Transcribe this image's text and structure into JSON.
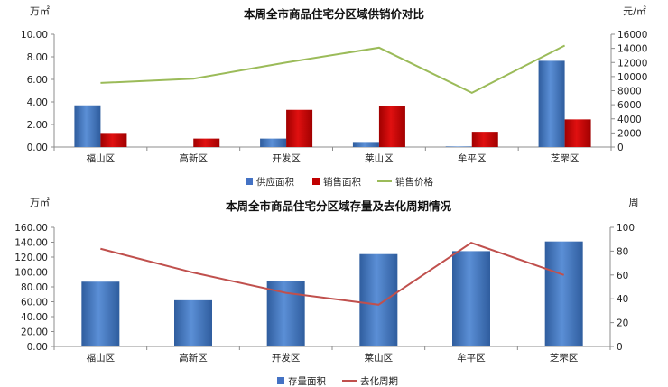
{
  "chart_data": [
    {
      "type": "bar",
      "title": "本周全市商品住宅分区域供销价对比",
      "categories": [
        "福山区",
        "高新区",
        "开发区",
        "莱山区",
        "牟平区",
        "芝罘区"
      ],
      "left_unit": "万㎡",
      "right_unit": "元/㎡",
      "ylim": [
        0,
        10
      ],
      "y_ticks": [
        "0.00",
        "2.00",
        "4.00",
        "6.00",
        "8.00",
        "10.00"
      ],
      "y2lim": [
        0,
        16000
      ],
      "y2_ticks": [
        "0",
        "2000",
        "4000",
        "6000",
        "8000",
        "10000",
        "12000",
        "14000",
        "16000"
      ],
      "series": [
        {
          "name": "供应面积",
          "kind": "bar",
          "axis": "left",
          "color": "#4472c4",
          "values": [
            3.7,
            0,
            0.75,
            0.45,
            0.05,
            7.65
          ]
        },
        {
          "name": "销售面积",
          "kind": "bar",
          "axis": "left",
          "color": "#c00000",
          "values": [
            1.25,
            0.75,
            3.3,
            3.65,
            1.35,
            2.45
          ]
        },
        {
          "name": "销售价格",
          "kind": "line",
          "axis": "right",
          "color": "#9bbb59",
          "values": [
            9100,
            9700,
            12000,
            14100,
            7700,
            14400
          ]
        }
      ],
      "legend_position": "bottom"
    },
    {
      "type": "bar",
      "title": "本周全市商品住宅分区域存量及去化周期情况",
      "categories": [
        "福山区",
        "高新区",
        "开发区",
        "莱山区",
        "牟平区",
        "芝罘区"
      ],
      "left_unit": "万㎡",
      "right_unit": "周",
      "ylim": [
        0,
        160
      ],
      "y_ticks": [
        "0.00",
        "20.00",
        "40.00",
        "60.00",
        "80.00",
        "100.00",
        "120.00",
        "140.00",
        "160.00"
      ],
      "y2lim": [
        0,
        100
      ],
      "y2_ticks": [
        "0",
        "20",
        "40",
        "60",
        "80",
        "100"
      ],
      "series": [
        {
          "name": "存量面积",
          "kind": "bar",
          "axis": "left",
          "color": "#4472c4",
          "values": [
            87,
            62,
            88,
            124,
            128,
            141
          ]
        },
        {
          "name": "去化周期",
          "kind": "line",
          "axis": "right",
          "color": "#c0504d",
          "values": [
            82,
            62,
            45,
            35,
            87,
            60
          ]
        }
      ],
      "legend_position": "bottom"
    }
  ]
}
